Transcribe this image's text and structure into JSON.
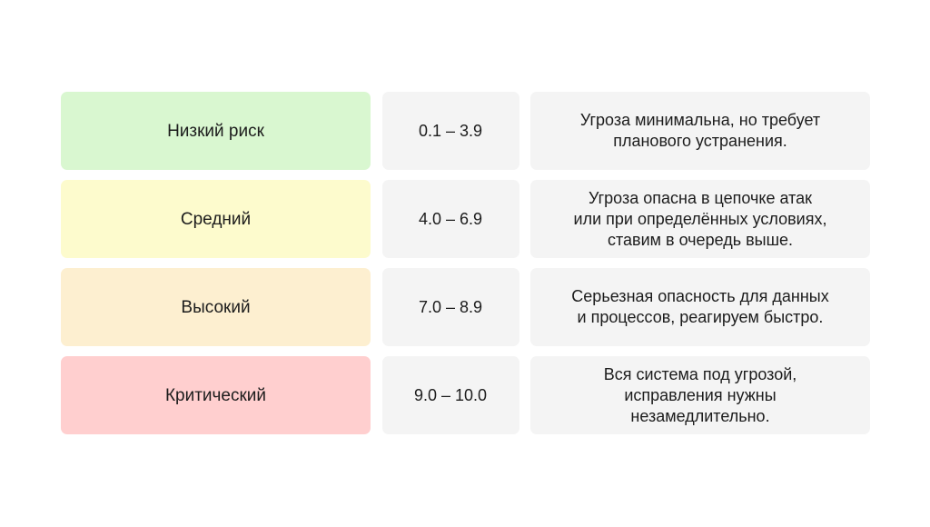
{
  "rows": [
    {
      "level": "Низкий риск",
      "range": "0.1 – 3.9",
      "color": "#d9f7d0",
      "description": [
        "Угроза минимальна, но требует",
        "планового устранения."
      ]
    },
    {
      "level": "Средний",
      "range": "4.0 – 6.9",
      "color": "#fdfbcd",
      "description": [
        "Угроза опасна в цепочке атак",
        "или при определённых условиях,",
        "ставим в очередь выше."
      ]
    },
    {
      "level": "Высокий",
      "range": "7.0 – 8.9",
      "color": "#fdefd0",
      "description": [
        "Серьезная опасность для данных",
        "и процессов, реагируем быстро."
      ]
    },
    {
      "level": "Критический",
      "range": "9.0 – 10.0",
      "color": "#ffcfcf",
      "description": [
        "Вся система под угрозой,",
        "исправления нужны",
        "незамедлительно."
      ]
    }
  ]
}
